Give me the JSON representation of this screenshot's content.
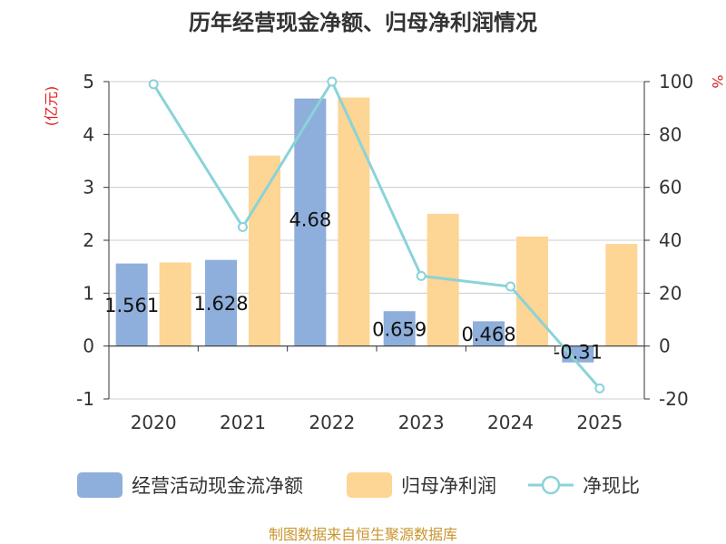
{
  "chart_data": {
    "type": "bar",
    "title": "历年经营现金净额、归母净利润情况",
    "categories": [
      "2020",
      "2021",
      "2022",
      "2023",
      "2024",
      "2025"
    ],
    "series": [
      {
        "name": "经营活动现金流净额",
        "kind": "bar",
        "axis": "left",
        "color": "#8eaedb",
        "values": [
          1.561,
          1.628,
          4.68,
          0.659,
          0.468,
          -0.31
        ],
        "labels": [
          "1.561",
          "1.628",
          "4.68",
          "0.659",
          "0.468",
          "-0.31"
        ]
      },
      {
        "name": "归母净利润",
        "kind": "bar",
        "axis": "left",
        "color": "#fdd594",
        "values": [
          1.58,
          3.6,
          4.7,
          2.5,
          2.07,
          1.93
        ]
      },
      {
        "name": "净现比",
        "kind": "line",
        "axis": "right",
        "color": "#8ad3d9",
        "values": [
          99,
          45,
          100,
          26.5,
          22.5,
          -16
        ]
      }
    ],
    "left_axis": {
      "label": "(亿元)",
      "ylim": [
        -1,
        5
      ],
      "ticks": [
        5,
        4,
        3,
        2,
        1,
        0,
        -1
      ]
    },
    "right_axis": {
      "label": "%",
      "ylim": [
        -20,
        100
      ],
      "ticks": [
        100,
        80,
        60,
        40,
        20,
        0,
        -20
      ]
    },
    "grid": true,
    "legend_position": "bottom",
    "source": "制图数据来自恒生聚源数据库"
  }
}
